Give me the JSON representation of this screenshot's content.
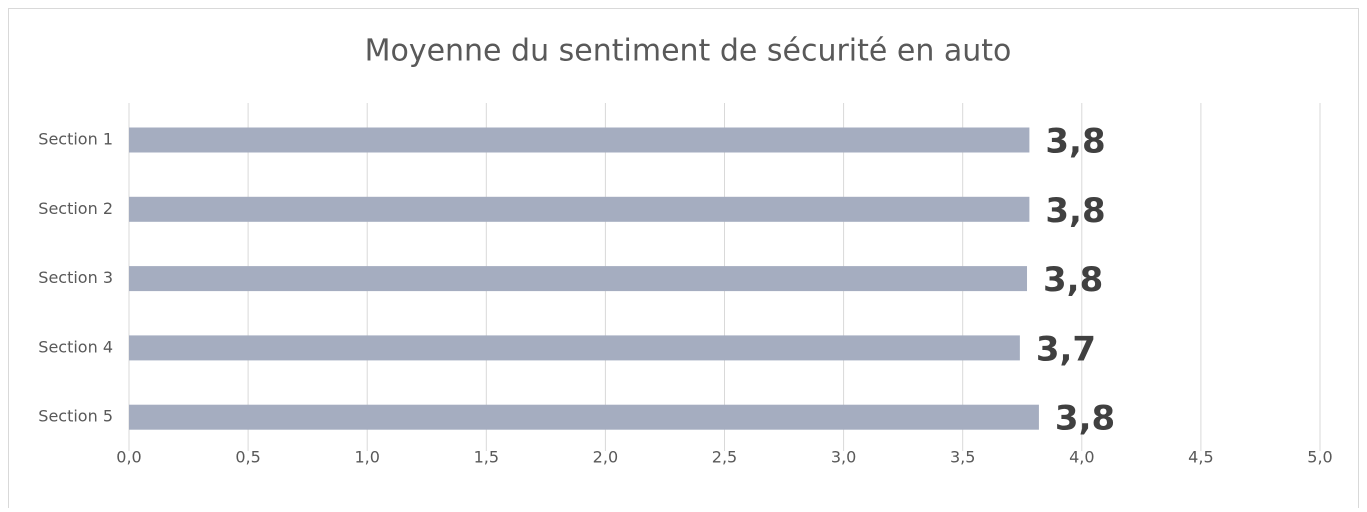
{
  "chart_data": {
    "type": "barh",
    "title": "Moyenne du sentiment de sécurité en auto",
    "categories": [
      "Section 1",
      "Section 2",
      "Section 3",
      "Section 4",
      "Section 5"
    ],
    "values": [
      3.78,
      3.78,
      3.77,
      3.74,
      3.82
    ],
    "value_labels": [
      "3,8",
      "3,8",
      "3,8",
      "3,7",
      "3,8"
    ],
    "color": "#a5adc0",
    "xlim": [
      0,
      5
    ],
    "xticks": [
      {
        "value": 0,
        "label": "0,0"
      },
      {
        "value": 0.5,
        "label": "0,5"
      },
      {
        "value": 1,
        "label": "1,0"
      },
      {
        "value": 1.5,
        "label": "1,5"
      },
      {
        "value": 2,
        "label": "2,0"
      },
      {
        "value": 2.5,
        "label": "2,5"
      },
      {
        "value": 3,
        "label": "3,0"
      },
      {
        "value": 3.5,
        "label": "3,5"
      },
      {
        "value": 4,
        "label": "4,0"
      },
      {
        "value": 4.5,
        "label": "4,5"
      },
      {
        "value": 5,
        "label": "5,0"
      }
    ],
    "grid": true
  }
}
